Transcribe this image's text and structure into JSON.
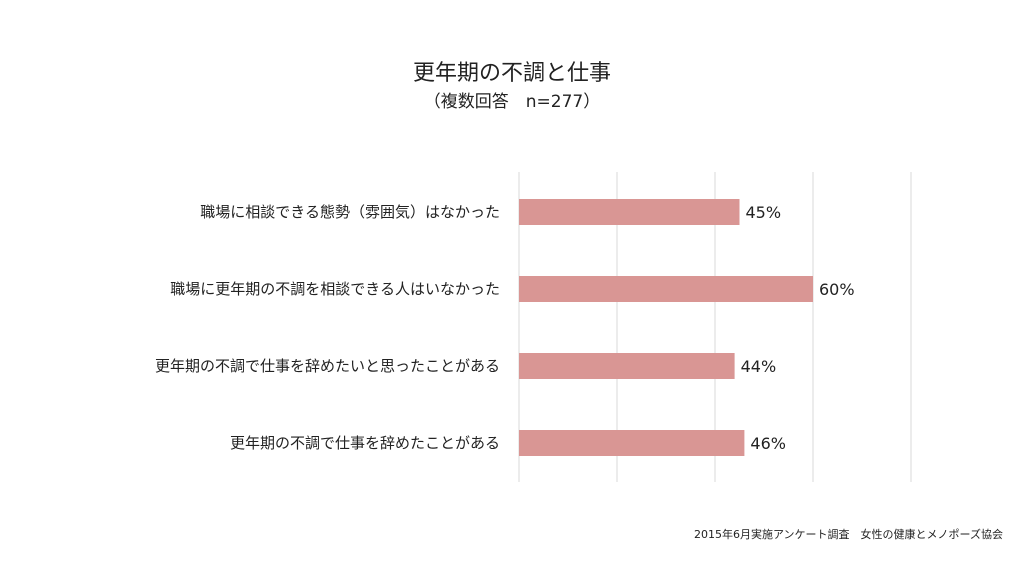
{
  "chart_data": {
    "type": "bar",
    "orientation": "horizontal",
    "title": "更年期の不調と仕事",
    "subtitle": "（複数回答　n=277）",
    "categories": [
      "職場に相談できる態勢（雰囲気）はなかった",
      "職場に更年期の不調を相談できる人はいなかった",
      "更年期の不調で仕事を辞めたいと思ったことがある",
      "更年期の不調で仕事を辞めたことがある"
    ],
    "values": [
      45,
      60,
      44,
      46
    ],
    "value_labels": [
      "45%",
      "60%",
      "44%",
      "46%"
    ],
    "unit": "%",
    "xlim": [
      0,
      80
    ],
    "grid": true,
    "bar_color": "#d99694",
    "grid_color": "#d9d9d9"
  },
  "footer": {
    "source": "2015年6月実施アンケート調査　女性の健康とメノポーズ協会"
  }
}
